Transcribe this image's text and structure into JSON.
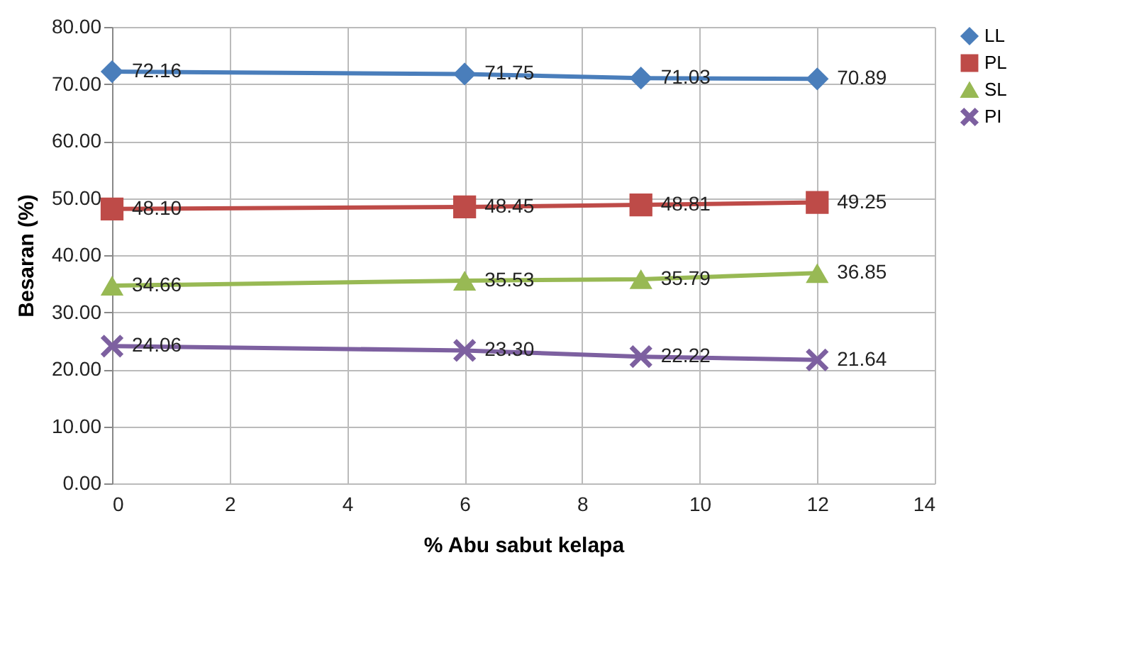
{
  "chart_data": {
    "type": "line",
    "xlabel": "% Abu sabut kelapa",
    "ylabel": "Besaran (%)",
    "x": [
      0,
      6,
      9,
      12
    ],
    "xlim": [
      0,
      14
    ],
    "xticks": [
      0,
      2,
      4,
      6,
      8,
      10,
      12,
      14
    ],
    "ylim": [
      0,
      80
    ],
    "yticks": [
      {
        "value": 0,
        "label": "0.00"
      },
      {
        "value": 10,
        "label": "10.00"
      },
      {
        "value": 20,
        "label": "20.00"
      },
      {
        "value": 30,
        "label": "30.00"
      },
      {
        "value": 40,
        "label": "40.00"
      },
      {
        "value": 50,
        "label": "50.00"
      },
      {
        "value": 60,
        "label": "60.00"
      },
      {
        "value": 70,
        "label": "70.00"
      },
      {
        "value": 80,
        "label": "80.00"
      }
    ],
    "grid": true,
    "legend": "right",
    "series": [
      {
        "name": "LL",
        "color": "#4a7ebb",
        "marker": "diamond",
        "values": [
          72.16,
          71.75,
          71.03,
          70.89
        ],
        "value_labels": [
          "72.16",
          "71.75",
          "71.03",
          "70.89"
        ]
      },
      {
        "name": "PL",
        "color": "#be4b48",
        "marker": "square",
        "values": [
          48.1,
          48.45,
          48.81,
          49.25
        ],
        "value_labels": [
          "48.10",
          "48.45",
          "48.81",
          "49.25"
        ]
      },
      {
        "name": "SL",
        "color": "#98b954",
        "marker": "triangle",
        "values": [
          34.66,
          35.53,
          35.79,
          36.85
        ],
        "value_labels": [
          "34.66",
          "35.53",
          "35.79",
          "36.85"
        ]
      },
      {
        "name": "PI",
        "color": "#7d60a0",
        "marker": "cross",
        "values": [
          24.06,
          23.3,
          22.22,
          21.64
        ],
        "value_labels": [
          "24.06",
          "23.30",
          "22.22",
          "21.64"
        ]
      }
    ]
  }
}
